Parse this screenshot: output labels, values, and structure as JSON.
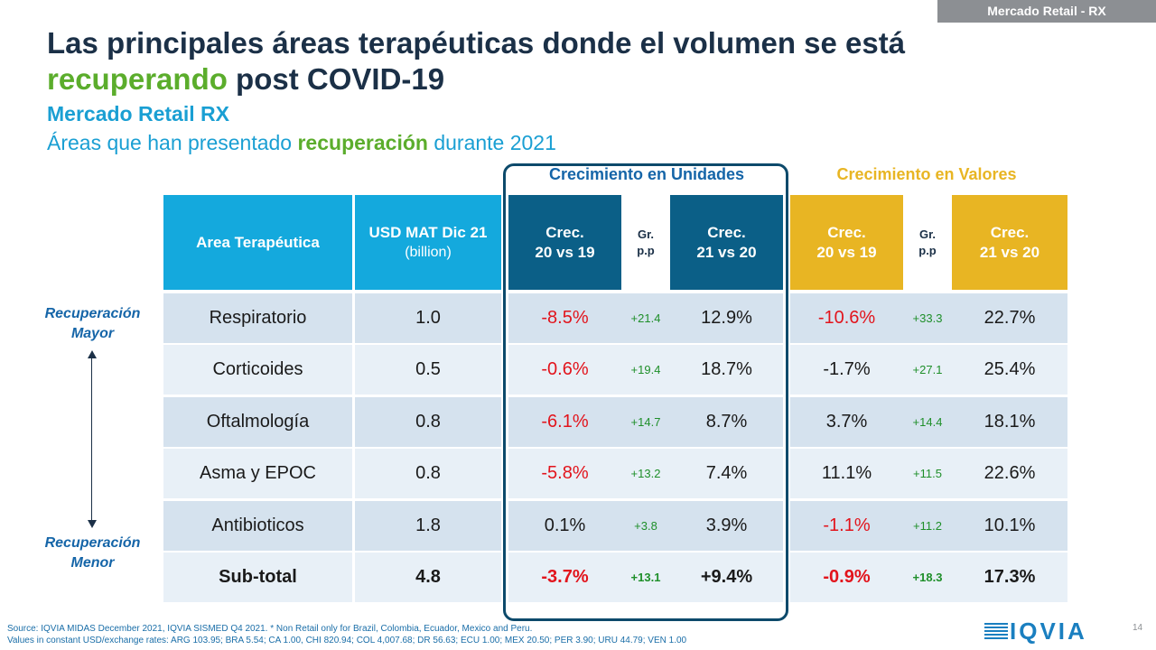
{
  "tag": "Mercado Retail - RX",
  "title": {
    "line1": "Las principales áreas terapéuticas donde el volumen se está",
    "line2_highlight": "recuperando",
    "line2_rest": " post COVID-19"
  },
  "subtitle": "Mercado Retail RX",
  "subtitle2": {
    "pre": "Áreas que han presentado ",
    "highlight": "recuperación",
    "post": " durante 2021"
  },
  "groups": {
    "units": "Crecimiento en Unidades",
    "values": "Crecimiento en Valores"
  },
  "headers": {
    "area": "Area Terapéutica",
    "usd_line1": "USD MAT Dic 21",
    "usd_line2": "(billion)",
    "crec_line1": "Crec.",
    "crec_2019": "20 vs 19",
    "crec_2120": "21 vs 20",
    "gr_line1": "Gr.",
    "gr_line2": "p.p"
  },
  "rows": [
    {
      "area": "Respiratorio",
      "usd": "1.0",
      "u2019": "-8.5%",
      "ugr": "+21.4",
      "u2120": "12.9%",
      "v2019": "-10.6%",
      "vgr": "+33.3",
      "v2120": "22.7%"
    },
    {
      "area": "Corticoides",
      "usd": "0.5",
      "u2019": "-0.6%",
      "ugr": "+19.4",
      "u2120": "18.7%",
      "v2019": "-1.7%",
      "vgr": "+27.1",
      "v2120": "25.4%"
    },
    {
      "area": "Oftalmología",
      "usd": "0.8",
      "u2019": "-6.1%",
      "ugr": "+14.7",
      "u2120": "8.7%",
      "v2019": "3.7%",
      "vgr": "+14.4",
      "v2120": "18.1%"
    },
    {
      "area": "Asma y EPOC",
      "usd": "0.8",
      "u2019": "-5.8%",
      "ugr": "+13.2",
      "u2120": "7.4%",
      "v2019": "11.1%",
      "vgr": "+11.5",
      "v2120": "22.6%"
    },
    {
      "area": "Antibioticos",
      "usd": "1.8",
      "u2019": "0.1%",
      "ugr": "+3.8",
      "u2120": "3.9%",
      "v2019": "-1.1%",
      "vgr": "+11.2",
      "v2120": "10.1%"
    },
    {
      "area": "Sub-total",
      "usd": "4.8",
      "u2019": "-3.7%",
      "ugr": "+13.1",
      "u2120": "+9.4%",
      "v2019": "-0.9%",
      "vgr": "+18.3",
      "v2120": "17.3%"
    }
  ],
  "side": {
    "top_line1": "Recuperación",
    "top_line2": "Mayor",
    "bottom_line1": "Recuperación",
    "bottom_line2": "Menor"
  },
  "source_line1": "Source: IQVIA MIDAS December 2021, IQVIA SISMED Q4 2021. * Non Retail only for Brazil, Colombia, Ecuador, Mexico and Peru.",
  "source_line2": "Values in constant USD/exchange rates: ARG 103.95; BRA 5.54; CA 1.00, CHI 820.94; COL 4,007.68; DR 56.63; ECU 1.00; MEX 20.50; PER 3.90; URU 44.79; VEN 1.00",
  "logo": "IQVIA",
  "page_number": "14",
  "colors": {
    "negative": "#e2141c",
    "growth": "#1f8f2a",
    "header_light_blue": "#14a9dd",
    "header_dark_blue": "#0b5f87",
    "header_yellow": "#e8b523",
    "accent_green": "#5bad2c"
  }
}
